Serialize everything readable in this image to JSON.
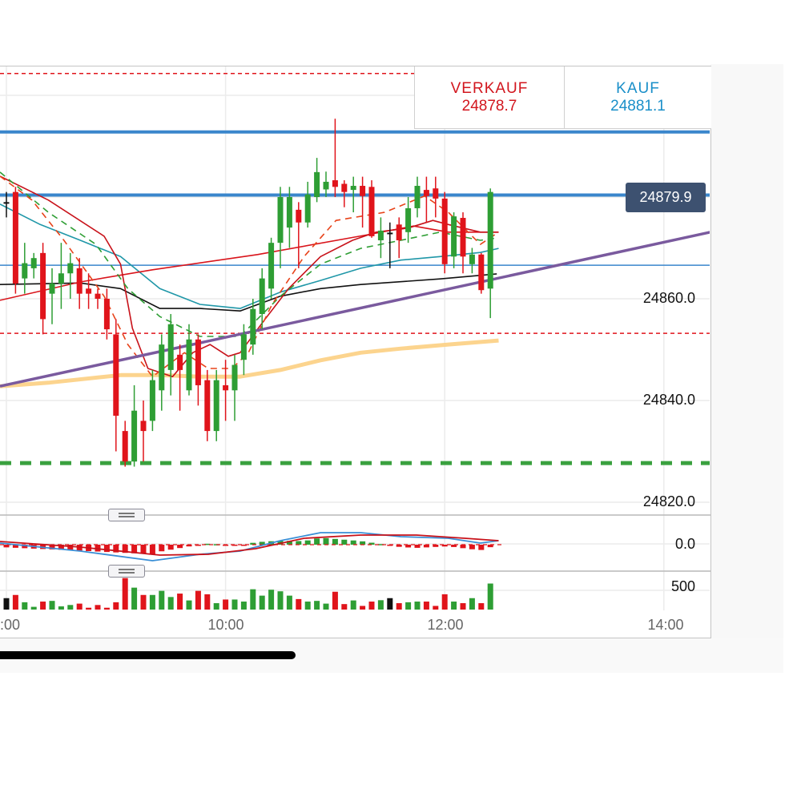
{
  "quotes": {
    "sell_label": "VERKAUF",
    "sell_value": "24878.7",
    "buy_label": "KAUF",
    "buy_value": "24881.1"
  },
  "current_price_tag": "24879.9",
  "colors": {
    "up": "#2e9e34",
    "down": "#e0141b",
    "neutral": "#111111",
    "sell": "#d2161e",
    "buy": "#1a8fc9",
    "tag": "#3d5170"
  },
  "chart_data": {
    "type": "candlestick",
    "bar_interval_minutes": 5,
    "x_unit": "bar index from 8:00",
    "y_ticks": [
      "24860.0",
      "24840.0",
      "24820.0"
    ],
    "y_tick_values": [
      24860,
      24840,
      24820
    ],
    "grid_prices": [
      24820,
      24840,
      24860,
      24880,
      24900
    ],
    "x_ticks": [
      ":00",
      "10:00",
      "12:00",
      "14:00"
    ],
    "x_tick_bars": [
      0,
      24,
      48,
      72
    ],
    "ohlc": [
      [
        24879,
        24881,
        24876,
        24879
      ],
      [
        24881,
        24882,
        24861,
        24863
      ],
      [
        24864,
        24871,
        24861,
        24867
      ],
      [
        24866,
        24869,
        24864,
        24868
      ],
      [
        24869,
        24871,
        24853,
        24856
      ],
      [
        24861,
        24866,
        24855,
        24863
      ],
      [
        24863,
        24871,
        24858,
        24865
      ],
      [
        24865,
        24869,
        24860,
        24867
      ],
      [
        24866,
        24868,
        24858,
        24861
      ],
      [
        24862,
        24865,
        24858,
        24861
      ],
      [
        24861,
        24862,
        24858,
        24860
      ],
      [
        24860,
        24862,
        24852,
        24854
      ],
      [
        24853,
        24856,
        24830,
        24837
      ],
      [
        24834,
        24836,
        24827,
        24828
      ],
      [
        24828,
        24843,
        24827,
        24838
      ],
      [
        24836,
        24840,
        24828,
        24834
      ],
      [
        24836,
        24846,
        24834,
        24844
      ],
      [
        24842,
        24853,
        24838,
        24851
      ],
      [
        24846,
        24857,
        24841,
        24855
      ],
      [
        24849,
        24851,
        24838,
        24846
      ],
      [
        24842,
        24855,
        24841,
        24852
      ],
      [
        24852,
        24853,
        24839,
        24843
      ],
      [
        24844,
        24846,
        24832,
        24834
      ],
      [
        24834,
        24846,
        24832,
        24844
      ],
      [
        24843,
        24848,
        24836,
        24842
      ],
      [
        24842,
        24849,
        24836,
        24847
      ],
      [
        24848,
        24855,
        24845,
        24853
      ],
      [
        24851,
        24860,
        24849,
        24858
      ],
      [
        24857,
        24866,
        24854,
        24864
      ],
      [
        24862,
        24872,
        24860,
        24871
      ],
      [
        24871,
        24882,
        24866,
        24880
      ],
      [
        24874,
        24882,
        24870,
        24880
      ],
      [
        24877.5,
        24879,
        24866,
        24875
      ],
      [
        24875,
        24883,
        24874,
        24880.5
      ],
      [
        24880,
        24887.7,
        24879,
        24884.9
      ],
      [
        24881.5,
        24885,
        24880,
        24883
      ],
      [
        24883.3,
        24895.4,
        24880,
        24882
      ],
      [
        24882.6,
        24883.3,
        24878,
        24881
      ],
      [
        24881.4,
        24884,
        24877,
        24882.2
      ],
      [
        24882.2,
        24884,
        24874,
        24880.2
      ],
      [
        24882,
        24883.3,
        24872,
        24872.3
      ],
      [
        24871.5,
        24876,
        24868,
        24873.4
      ],
      [
        24873,
        24875,
        24866,
        24873
      ],
      [
        24874.6,
        24876,
        24868,
        24871.5
      ],
      [
        24873.1,
        24880,
        24871,
        24877.8
      ],
      [
        24877.8,
        24884,
        24876,
        24882.2
      ],
      [
        24881.4,
        24884,
        24875,
        24880.2
      ],
      [
        24881.7,
        24884,
        24876,
        24879.7
      ],
      [
        24879.7,
        24881,
        24865,
        24866.8
      ],
      [
        24868.3,
        24877,
        24866,
        24876.2
      ],
      [
        24875.9,
        24877,
        24865,
        24868.3
      ],
      [
        24866.8,
        24870,
        24865,
        24868.7
      ],
      [
        24868.7,
        24869,
        24861,
        24861.7
      ],
      [
        24862,
        24881.7,
        24856.2,
        24881
      ]
    ],
    "moving_averages": [
      {
        "name": "beige-ma",
        "color": "#fcd48e",
        "dashed": false,
        "points": [
          [
            -0.7,
            24842.8
          ],
          [
            4.6,
            24843.5
          ],
          [
            12.5,
            24845
          ],
          [
            16.8,
            24845
          ],
          [
            21.2,
            24844.7
          ],
          [
            25.6,
            24844.7
          ],
          [
            30,
            24846
          ],
          [
            34.4,
            24847.9
          ],
          [
            38.8,
            24849.4
          ],
          [
            43.2,
            24850.2
          ],
          [
            48.4,
            24851
          ],
          [
            53.9,
            24851.8
          ]
        ]
      },
      {
        "name": "black-ma",
        "color": "#111111",
        "dashed": false,
        "points": [
          [
            -0.7,
            24862.8
          ],
          [
            8.1,
            24863.1
          ],
          [
            12.5,
            24862
          ],
          [
            16.8,
            24858.1
          ],
          [
            21.2,
            24858.1
          ],
          [
            25.6,
            24857.6
          ],
          [
            30,
            24860.5
          ],
          [
            34.4,
            24862
          ],
          [
            38.8,
            24862.8
          ],
          [
            47.5,
            24863.9
          ],
          [
            53.7,
            24864.9
          ]
        ]
      },
      {
        "name": "teal-ma",
        "color": "#1f97a8",
        "dashed": false,
        "points": [
          [
            -0.7,
            24878.6
          ],
          [
            3.7,
            24874.6
          ],
          [
            8.1,
            24871.5
          ],
          [
            12.5,
            24868.3
          ],
          [
            16.8,
            24862
          ],
          [
            21.2,
            24858.9
          ],
          [
            25.6,
            24858.1
          ],
          [
            30,
            24861.3
          ],
          [
            34.4,
            24863.6
          ],
          [
            38.8,
            24866
          ],
          [
            43.2,
            24867.6
          ],
          [
            47.5,
            24868.3
          ],
          [
            51.9,
            24869.1
          ],
          [
            53.9,
            24869.9
          ]
        ]
      },
      {
        "name": "red-slow-ma",
        "color": "#d9141b",
        "dashed": false,
        "points": [
          [
            -0.7,
            24859.7
          ],
          [
            8.1,
            24863.3
          ],
          [
            16,
            24865.7
          ],
          [
            27.5,
            24868.7
          ],
          [
            39.6,
            24872.6
          ],
          [
            44.6,
            24874.3
          ],
          [
            48.4,
            24873.1
          ],
          [
            53.9,
            24873.1
          ]
        ]
      },
      {
        "name": "red-fast-ma",
        "color": "#c8121a",
        "dashed": false,
        "points": [
          [
            -0.7,
            24884.1
          ],
          [
            4.6,
            24879.4
          ],
          [
            10.7,
            24872.3
          ],
          [
            12.5,
            24866.8
          ],
          [
            13.8,
            24854.2
          ],
          [
            15.5,
            24846.3
          ],
          [
            18.2,
            24844.7
          ],
          [
            20.4,
            24849.4
          ],
          [
            22.3,
            24851
          ],
          [
            24.3,
            24848.7
          ],
          [
            25.6,
            24849.4
          ],
          [
            28.2,
            24855.7
          ],
          [
            30.9,
            24862
          ],
          [
            34.4,
            24868.3
          ],
          [
            37.9,
            24871.5
          ],
          [
            40.5,
            24873.1
          ],
          [
            44,
            24873.9
          ],
          [
            46.7,
            24875.4
          ],
          [
            48.4,
            24874.6
          ],
          [
            51.9,
            24873.1
          ],
          [
            53.9,
            24873.1
          ]
        ]
      },
      {
        "name": "green-dashed-ma",
        "color": "#2e9e34",
        "dashed": true,
        "points": [
          [
            -0.7,
            24884.9
          ],
          [
            4.6,
            24877
          ],
          [
            9.8,
            24870.7
          ],
          [
            13.3,
            24862
          ],
          [
            16.8,
            24856.5
          ],
          [
            21.2,
            24852.6
          ],
          [
            25.6,
            24852.6
          ],
          [
            30,
            24860.5
          ],
          [
            34.4,
            24866.8
          ],
          [
            38.8,
            24869.9
          ],
          [
            43.2,
            24871.5
          ],
          [
            47.5,
            24873.1
          ],
          [
            51.9,
            24871.5
          ],
          [
            53.9,
            24872
          ]
        ]
      },
      {
        "name": "orange-dashed-ma",
        "color": "#e8431a",
        "dashed": true,
        "points": [
          [
            -0.7,
            24884.1
          ],
          [
            2.8,
            24879.4
          ],
          [
            6.3,
            24871.5
          ],
          [
            10.7,
            24860.5
          ],
          [
            13.3,
            24851
          ],
          [
            16,
            24844.7
          ],
          [
            19.5,
            24849.4
          ],
          [
            22.1,
            24846.3
          ],
          [
            24.7,
            24846.3
          ],
          [
            26.5,
            24849.4
          ],
          [
            29.1,
            24858.9
          ],
          [
            32.6,
            24868.3
          ],
          [
            36.1,
            24875.4
          ],
          [
            41.4,
            24877
          ],
          [
            45.8,
            24880.2
          ],
          [
            48.4,
            24877
          ],
          [
            51.9,
            24870.7
          ],
          [
            53.9,
            24873.1
          ]
        ]
      }
    ],
    "trendline": {
      "color": "#7a5a9e",
      "from": [
        -0.7,
        24842.8
      ],
      "to": [
        77.1,
        24873.1
      ]
    },
    "horizontal_levels": [
      {
        "name": "resistance-level",
        "price": 24892.8,
        "color": "#3a86cc",
        "style": "thick"
      },
      {
        "name": "current-price-level",
        "price": 24880.4,
        "color": "#3a86cc",
        "style": "thick"
      },
      {
        "name": "support-level",
        "price": 24866.6,
        "color": "#3a86cc",
        "style": "thin"
      },
      {
        "name": "upper-red-dashed-level",
        "price": 24904.3,
        "color": "#e0141b",
        "style": "dash-red"
      },
      {
        "name": "lower-red-dashed-level",
        "price": 24853.2,
        "color": "#e0141b",
        "style": "dash-red"
      },
      {
        "name": "green-dashed-level",
        "price": 24827.7,
        "color": "#3aa13f",
        "style": "dash-green"
      }
    ],
    "macd": {
      "zero_label": "0.0",
      "macd_line": [
        [
          -0.7,
          0.4
        ],
        [
          8.1,
          -1.6
        ],
        [
          16,
          -4
        ],
        [
          21.2,
          -2.4
        ],
        [
          25.6,
          -1.6
        ],
        [
          30,
          1
        ],
        [
          34.4,
          3
        ],
        [
          38.8,
          3
        ],
        [
          43.2,
          2
        ],
        [
          48.4,
          1.6
        ],
        [
          51.9,
          0.4
        ],
        [
          53.9,
          1
        ]
      ],
      "signal_line": [
        [
          -0.7,
          0.8
        ],
        [
          8.1,
          -0.6
        ],
        [
          16.8,
          -2.6
        ],
        [
          22.1,
          -2.4
        ],
        [
          27.3,
          -1
        ],
        [
          32.6,
          1.6
        ],
        [
          38.8,
          2.4
        ],
        [
          44.9,
          2.4
        ],
        [
          50.2,
          1.6
        ],
        [
          53.9,
          1
        ]
      ]
    },
    "volume": {
      "tick_label": "500",
      "tick_value": 500,
      "values": [
        250,
        320,
        160,
        60,
        175,
        190,
        70,
        100,
        130,
        40,
        100,
        40,
        160,
        690,
        480,
        320,
        320,
        410,
        275,
        350,
        200,
        410,
        335,
        140,
        220,
        220,
        175,
        445,
        305,
        435,
        400,
        305,
        230,
        175,
        190,
        130,
        390,
        120,
        200,
        80,
        175,
        205,
        250,
        140,
        160,
        175,
        175,
        80,
        335,
        175,
        140,
        250,
        140,
        570
      ]
    }
  }
}
